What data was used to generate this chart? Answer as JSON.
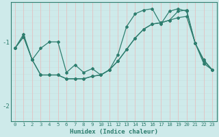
{
  "xlabel": "Humidex (Indice chaleur)",
  "bg_color": "#ceeaea",
  "line_color": "#2e7d6e",
  "grid_color_v": "#e8b8b8",
  "grid_color_h": "#c8e0e0",
  "xlim": [
    -0.5,
    23.5
  ],
  "ylim": [
    -2.25,
    -0.38
  ],
  "yticks": [
    -2,
    -1
  ],
  "xticks": [
    0,
    1,
    2,
    3,
    4,
    5,
    6,
    7,
    8,
    9,
    10,
    11,
    12,
    13,
    14,
    15,
    16,
    17,
    18,
    19,
    20,
    21,
    22,
    23
  ],
  "line1_x": [
    0,
    1,
    2,
    3,
    4,
    5,
    6,
    7,
    8,
    9,
    10,
    11,
    12,
    13,
    14,
    15,
    16,
    17,
    18,
    19,
    20,
    21,
    22,
    23
  ],
  "line1_y": [
    -1.1,
    -0.92,
    -1.28,
    -1.52,
    -1.52,
    -1.52,
    -1.58,
    -1.58,
    -1.58,
    -1.54,
    -1.52,
    -1.44,
    -1.3,
    -1.12,
    -0.94,
    -0.8,
    -0.72,
    -0.7,
    -0.66,
    -0.62,
    -0.6,
    -1.02,
    -1.3,
    -1.44
  ],
  "line2_x": [
    0,
    1,
    2,
    3,
    4,
    5,
    6,
    7,
    8,
    9,
    10,
    11,
    12,
    13,
    14,
    15,
    16,
    17,
    18,
    19,
    20,
    21,
    22,
    23
  ],
  "line2_y": [
    -1.1,
    -0.88,
    -1.28,
    -1.1,
    -1.0,
    -1.0,
    -1.48,
    -1.36,
    -1.48,
    -1.42,
    -1.52,
    -1.44,
    -1.2,
    -0.76,
    -0.56,
    -0.5,
    -0.48,
    -0.72,
    -0.52,
    -0.48,
    -0.52,
    -1.02,
    -1.28,
    -1.44
  ],
  "line3_x": [
    0,
    1,
    2,
    3,
    4,
    5,
    6,
    7,
    8,
    9,
    10,
    11,
    12,
    13,
    14,
    15,
    16,
    17,
    18,
    19,
    20,
    21,
    22,
    23
  ],
  "line3_y": [
    -1.1,
    -0.92,
    -1.28,
    -1.52,
    -1.52,
    -1.52,
    -1.58,
    -1.58,
    -1.58,
    -1.54,
    -1.52,
    -1.44,
    -1.3,
    -1.12,
    -0.94,
    -0.8,
    -0.72,
    -0.7,
    -0.66,
    -0.52,
    -0.5,
    -1.02,
    -1.34,
    -1.44
  ]
}
